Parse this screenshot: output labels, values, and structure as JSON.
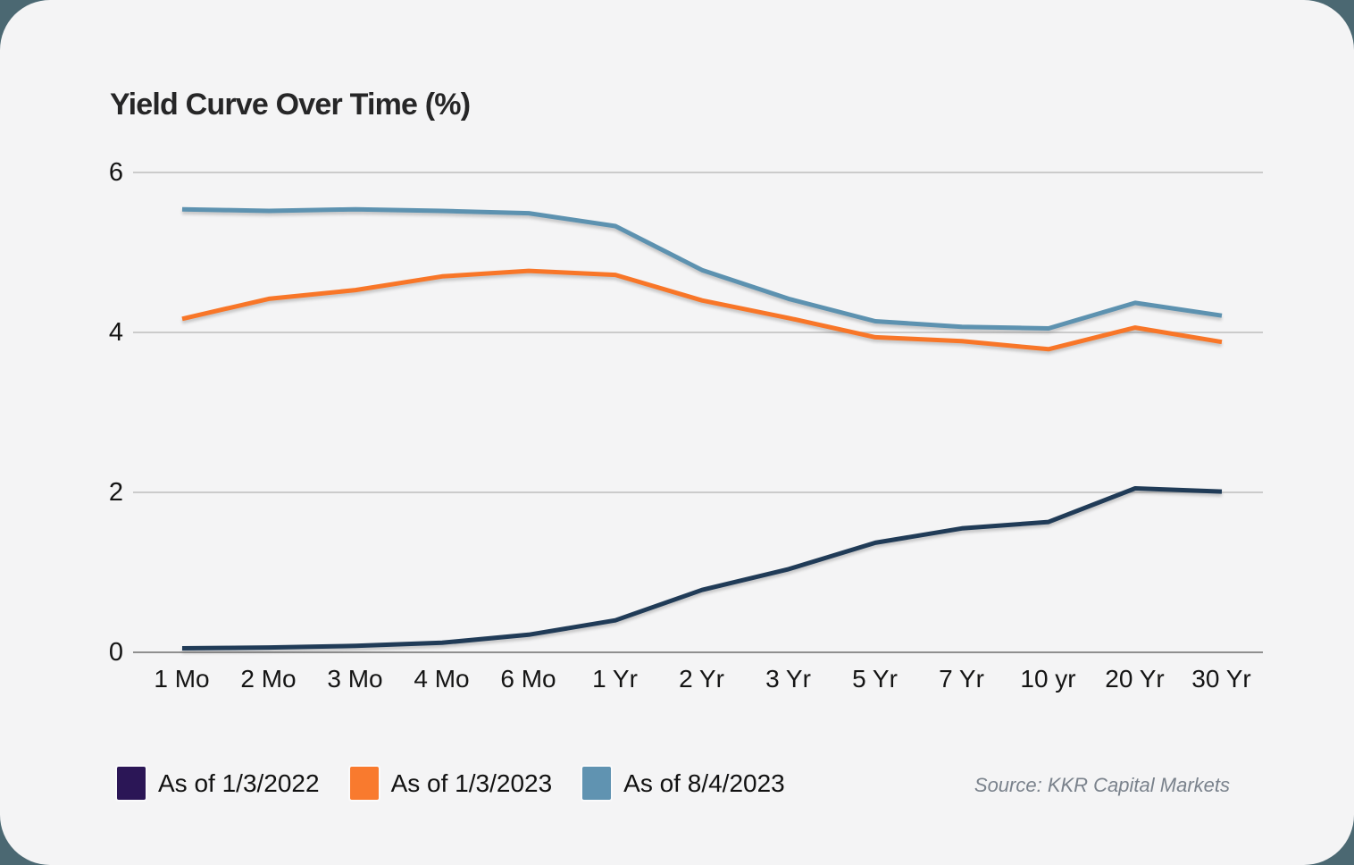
{
  "page": {
    "background_color": "#4B6872",
    "card_color": "#F4F4F5"
  },
  "chart_data": {
    "type": "line",
    "title": "Yield Curve Over Time (%)",
    "xlabel": "",
    "ylabel": "",
    "categories": [
      "1 Mo",
      "2 Mo",
      "3 Mo",
      "4 Mo",
      "6 Mo",
      "1 Yr",
      "2 Yr",
      "3 Yr",
      "5 Yr",
      "7 Yr",
      "10 yr",
      "20 Yr",
      "30 Yr"
    ],
    "yticks": [
      0,
      2,
      4,
      6
    ],
    "ylim": [
      0,
      6.3
    ],
    "grid": "horizontal",
    "gridline_color": "#CBCBCB",
    "zero_axis_color": "#8F8F8F",
    "legend_position": "bottom-left",
    "series": [
      {
        "name": "As of 1/3/2022",
        "color": "#203B57",
        "swatch_color": "#2B1656",
        "values": [
          0.05,
          0.06,
          0.08,
          0.12,
          0.22,
          0.4,
          0.78,
          1.04,
          1.37,
          1.55,
          1.63,
          2.05,
          2.01
        ]
      },
      {
        "name": "As of 1/3/2023",
        "color": "#F87628",
        "swatch_color": "#F97A2E",
        "values": [
          4.17,
          4.42,
          4.53,
          4.7,
          4.77,
          4.72,
          4.4,
          4.18,
          3.94,
          3.89,
          3.79,
          4.06,
          3.88
        ]
      },
      {
        "name": "As of 8/4/2023",
        "color": "#5D92B0",
        "swatch_color": "#6093B1",
        "values": [
          5.54,
          5.52,
          5.54,
          5.52,
          5.49,
          5.33,
          4.78,
          4.42,
          4.14,
          4.07,
          4.05,
          4.37,
          4.21
        ]
      }
    ],
    "source": "Source: KKR Capital Markets"
  }
}
